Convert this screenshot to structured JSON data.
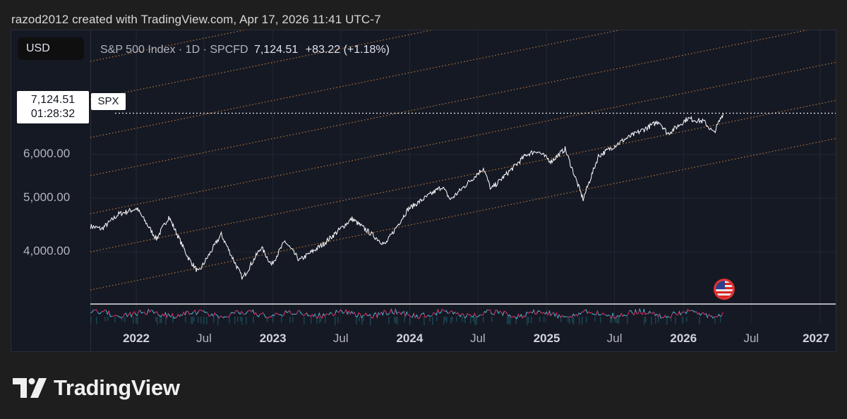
{
  "credit": "razod2012 created with TradingView.com, Apr 17, 2026 11:41 UTC-7",
  "currency": "USD",
  "legend": {
    "name": "S&P 500 Index · 1D · SPCFD",
    "price": "7,124.51",
    "change": "+83.22 (+1.18%)"
  },
  "price_tag": {
    "price": "7,124.51",
    "countdown": "01:28:32",
    "symbol": "SPX"
  },
  "brand": "TradingView",
  "colors": {
    "background": "#151924",
    "price_line": "#ffffff",
    "channel_lines": "#e8913a",
    "rsi_cyan": "#22c1d6",
    "rsi_magenta": "#e0336b"
  },
  "chart_data": {
    "type": "line",
    "title": "S&P 500 Index · 1D · SPCFD",
    "y_ticks": [
      "4,000.00",
      "5,000.00",
      "6,000.00"
    ],
    "y_tick_values": [
      4000,
      5000,
      6000
    ],
    "x_ticks": [
      "2022",
      "Jul",
      "2023",
      "Jul",
      "2024",
      "Jul",
      "2025",
      "Jul",
      "2026",
      "Jul",
      "2027"
    ],
    "x_tick_dates": [
      "2022-01-01",
      "2022-07-01",
      "2023-01-01",
      "2023-07-01",
      "2024-01-01",
      "2024-07-01",
      "2025-01-01",
      "2025-07-01",
      "2026-01-01",
      "2026-07-01",
      "2027-01-01"
    ],
    "log_scale": true,
    "grid": true,
    "last_price": 7124.51,
    "series": [
      {
        "values": [
          {
            "x": "2021-09-01",
            "y": 4450
          },
          {
            "x": "2021-10-01",
            "y": 4400
          },
          {
            "x": "2021-11-15",
            "y": 4680
          },
          {
            "x": "2022-01-03",
            "y": 4790
          },
          {
            "x": "2022-02-24",
            "y": 4220
          },
          {
            "x": "2022-03-29",
            "y": 4630
          },
          {
            "x": "2022-05-20",
            "y": 3900
          },
          {
            "x": "2022-06-16",
            "y": 3670
          },
          {
            "x": "2022-08-16",
            "y": 4300
          },
          {
            "x": "2022-10-12",
            "y": 3580
          },
          {
            "x": "2022-12-01",
            "y": 4080
          },
          {
            "x": "2022-12-28",
            "y": 3790
          },
          {
            "x": "2023-02-02",
            "y": 4180
          },
          {
            "x": "2023-03-13",
            "y": 3860
          },
          {
            "x": "2023-05-15",
            "y": 4130
          },
          {
            "x": "2023-07-31",
            "y": 4590
          },
          {
            "x": "2023-10-27",
            "y": 4120
          },
          {
            "x": "2023-12-28",
            "y": 4780
          },
          {
            "x": "2024-03-28",
            "y": 5250
          },
          {
            "x": "2024-04-19",
            "y": 4970
          },
          {
            "x": "2024-07-16",
            "y": 5670
          },
          {
            "x": "2024-08-05",
            "y": 5190
          },
          {
            "x": "2024-11-08",
            "y": 6000
          },
          {
            "x": "2024-12-06",
            "y": 6090
          },
          {
            "x": "2025-01-13",
            "y": 5830
          },
          {
            "x": "2025-02-19",
            "y": 6140
          },
          {
            "x": "2025-04-08",
            "y": 4980
          },
          {
            "x": "2025-05-19",
            "y": 5960
          },
          {
            "x": "2025-07-28",
            "y": 6390
          },
          {
            "x": "2025-10-28",
            "y": 6890
          },
          {
            "x": "2025-11-20",
            "y": 6540
          },
          {
            "x": "2026-01-12",
            "y": 6970
          },
          {
            "x": "2026-02-25",
            "y": 6880
          },
          {
            "x": "2026-03-23",
            "y": 6560
          },
          {
            "x": "2026-04-17",
            "y": 7124.51
          }
        ]
      }
    ],
    "channel_line_count": 9
  }
}
